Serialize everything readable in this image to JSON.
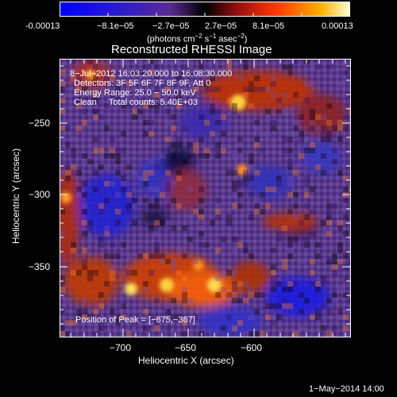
{
  "colorbar": {
    "ticks": [
      "-0.00013",
      "−8.1e−05",
      "−2.7e−05",
      "2.7e−05",
      "8.1e−05",
      "0.00013"
    ],
    "units_main": "(photons cm",
    "units_sup1": "−2",
    "units_mid1": " s",
    "units_sup2": "−1",
    "units_mid2": " asec",
    "units_sup3": "−2",
    "units_end": ")"
  },
  "plot": {
    "title": "Reconstructed RHESSI Image",
    "xlabel": "Heliocentric X (arcsec)",
    "ylabel": "Heliocentric Y (arcsec)",
    "x_ticks": [
      "−700",
      "−650",
      "−600"
    ],
    "y_ticks": [
      "−250",
      "−300",
      "−350"
    ],
    "xlim": [
      -745,
      -645
    ],
    "ylim": [
      -397,
      -218
    ]
  },
  "annotations": {
    "line1": "8−Jul−2012 16:03:20.000 to 16:08:30.000",
    "line2": "Detectors: 3F 5F 6F 7F 8F 9F, Att 0",
    "line3": "Energy Range: 25.0 − 50.0 keV",
    "line4": "Clean     Total counts: 5.40E+03",
    "peak": "Position of Peak = [−675,−367]"
  },
  "footer": {
    "date": "1−May−2014 14:00"
  },
  "colors": {
    "background": "#000000",
    "low": "#1010ff",
    "mid": "#6a3a9a",
    "high": "#ff6000",
    "peak": "#ffff60"
  }
}
